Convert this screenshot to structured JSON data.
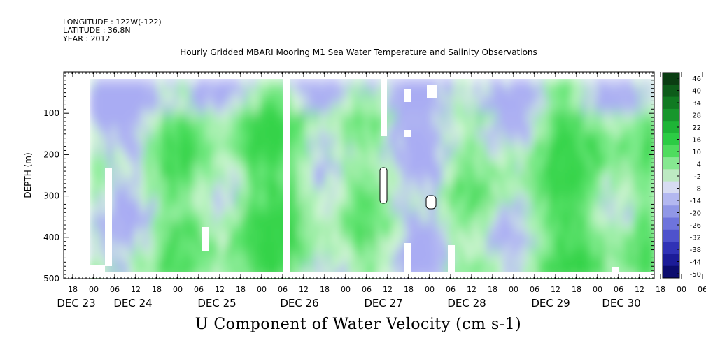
{
  "meta": {
    "longitude": "LONGITUDE : 122W(-122)",
    "latitude": "LATITUDE : 36.8N",
    "year": "YEAR : 2012"
  },
  "chart_data": {
    "type": "heatmap",
    "title": "Hourly Gridded MBARI Mooring M1 Sea Water Temperature and Salinity Observations",
    "xlabel": "U Component of Water Velocity (cm s-1)",
    "ylabel": "DEPTH (m)",
    "ylim": [
      500,
      0
    ],
    "y_ticks": [
      100,
      200,
      300,
      400,
      500
    ],
    "x_hour_ticks": [
      "18",
      "00",
      "06",
      "12",
      "18",
      "00",
      "06",
      "12",
      "18",
      "00",
      "06",
      "12",
      "18",
      "00",
      "06",
      "12",
      "18",
      "00",
      "06",
      "12",
      "18",
      "00",
      "06",
      "12",
      "18",
      "00",
      "06",
      "12",
      "18",
      "00",
      "06",
      "12"
    ],
    "x_day_labels": [
      "DEC 23",
      "DEC 24",
      "DEC 25",
      "DEC 26",
      "DEC 27",
      "DEC 28",
      "DEC 29",
      "DEC 30"
    ],
    "colorbar_levels": [
      "46",
      "40",
      "34",
      "28",
      "22",
      "16",
      "10",
      "4",
      "-2",
      "-8",
      "-14",
      "-20",
      "-26",
      "-32",
      "-38",
      "-44",
      "-50"
    ],
    "colorbar_colors": [
      "#0a3d12",
      "#0d5c1a",
      "#117a22",
      "#17962c",
      "#1eb436",
      "#2ccc44",
      "#4fdc5e",
      "#86e891",
      "#bde9c2",
      "#d7dcf2",
      "#b3b8f0",
      "#9097e6",
      "#6e74dc",
      "#4e52cc",
      "#3032b6",
      "#1c1c98",
      "#0c0c6e"
    ]
  }
}
